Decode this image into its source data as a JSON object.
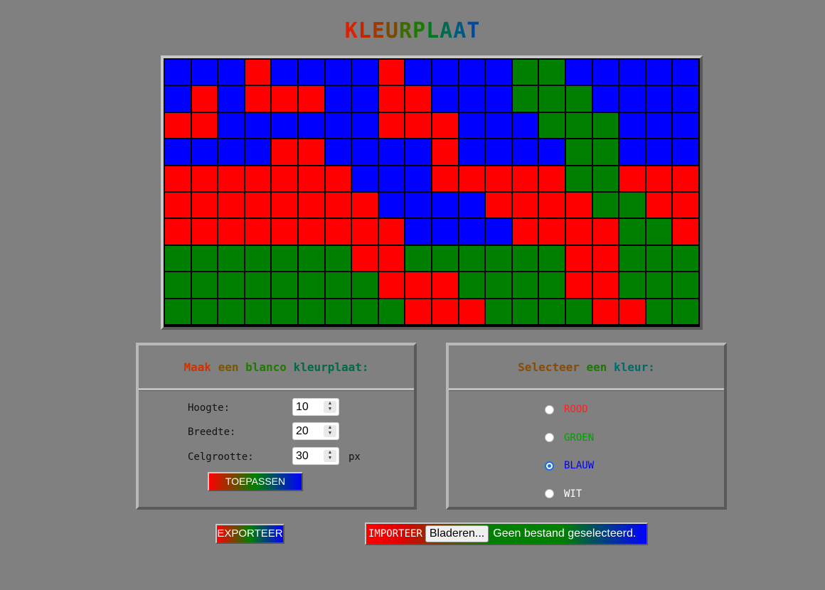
{
  "title": {
    "text": "KLEURPLAAT",
    "letter_colors": [
      "#dd2000",
      "#c02800",
      "#a03800",
      "#7a4a00",
      "#3f6a00",
      "#1a7a00",
      "#007a20",
      "#006a50",
      "#005a80",
      "#0048a0"
    ]
  },
  "grid": {
    "rows": 10,
    "cols": 20,
    "palette": {
      "R": "#ff0000",
      "G": "#008000",
      "B": "#0000ff",
      "W": "#ffffff"
    },
    "cells": [
      "BBBRBBBBRBBBBGGBBBBB",
      "BRBRRRBBRRBBBGGGBBBB",
      "RRBBBBBBRRRBBBGGGBBB",
      "BBBBRRBBBBRBBBBGGBBB",
      "RRRRRRRBBBRRRRRGGRRR",
      "RRRRRRRRBBBBRRRRGGRR",
      "RRRRRRRRRBBBBRRRRGGR",
      "GGGGGGGRRGGGGGGRRGGG",
      "GGGGGGGGRRRGGGGRRGGG",
      "GGGGGGGGGRRRGGGGRRGG"
    ]
  },
  "blank_panel": {
    "heading": "Maak een blanco kleurplaat:",
    "heading_colors": [
      "#cc3300",
      "#a04400",
      "#7a5500",
      "#4a6a00",
      "#207a00",
      "#00781a",
      "#006a44",
      "#005a70",
      "#004a8a"
    ],
    "height_label": "Hoogte:",
    "height_value": "10",
    "width_label": "Breedte:",
    "width_value": "20",
    "cellsize_label": "Celgrootte:",
    "cellsize_value": "30",
    "unit": "px",
    "apply_label": "TOEPASSEN"
  },
  "color_panel": {
    "heading": "Selecteer een kleur:",
    "options": [
      {
        "label": "ROOD",
        "color": "#ff2020",
        "checked": false
      },
      {
        "label": "GROEN",
        "color": "#00a000",
        "checked": false
      },
      {
        "label": "BLAUW",
        "color": "#0000ff",
        "checked": true
      },
      {
        "label": "WIT",
        "color": "#ffffff",
        "checked": false
      }
    ]
  },
  "actions": {
    "export_label": "EXPORTEER",
    "import_label": "IMPORTEER",
    "browse_label": "Bladeren...",
    "no_file_text": "Geen bestand geselecteerd."
  }
}
